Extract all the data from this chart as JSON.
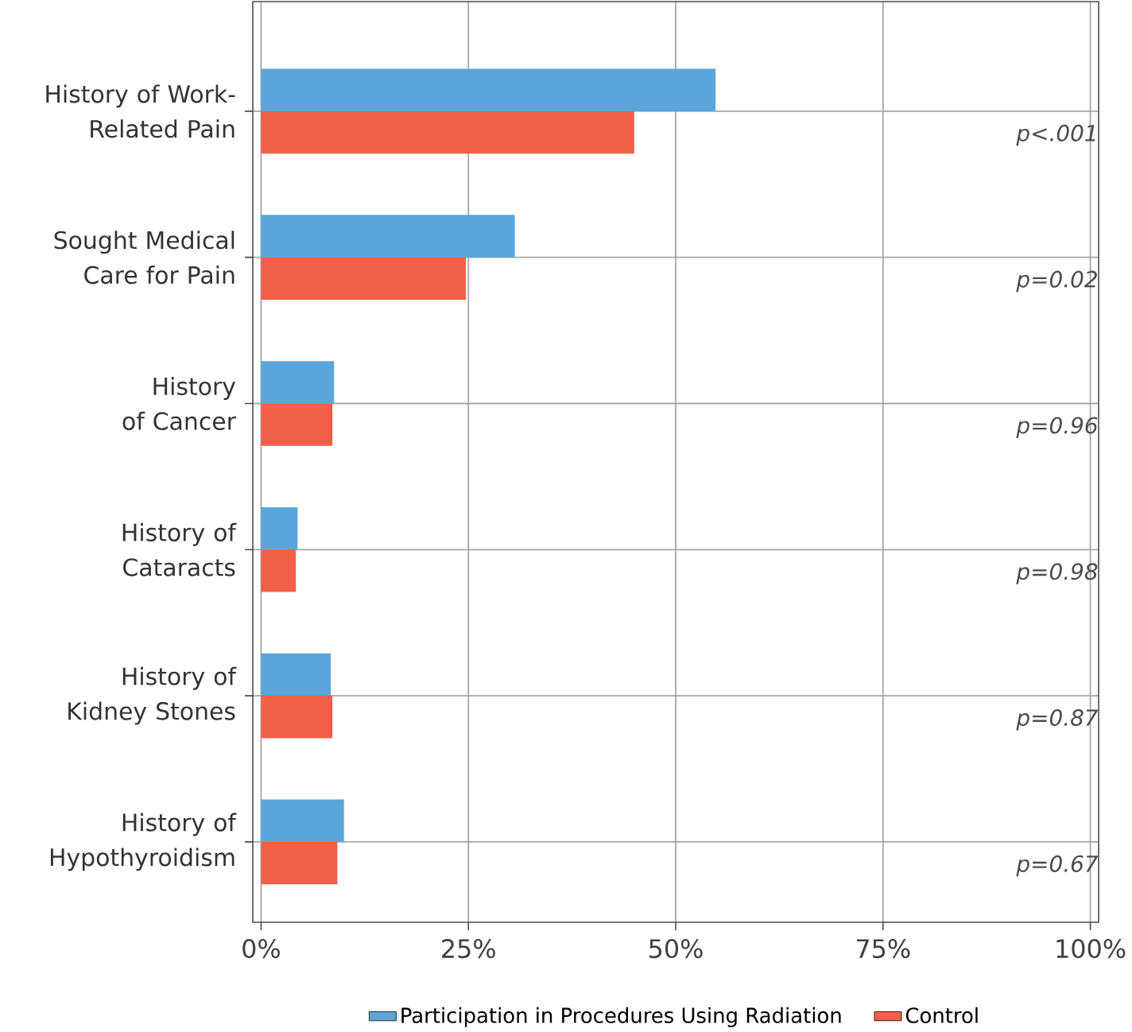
{
  "chart_data": {
    "type": "bar",
    "orientation": "horizontal",
    "categories": [
      "History of Work-Related Pain",
      "Sought Medical Care for Pain",
      "History of Cancer",
      "History of Cataracts",
      "History of Kidney Stones",
      "History of Hypothyroidism"
    ],
    "series": [
      {
        "name": "Participation in Procedures Using Radiation",
        "color": "#5ba5da",
        "values": [
          54.8,
          30.6,
          8.8,
          4.4,
          8.4,
          10.0
        ]
      },
      {
        "name": "Control",
        "color": "#f06049",
        "values": [
          45.0,
          24.7,
          8.6,
          4.2,
          8.6,
          9.2
        ]
      }
    ],
    "xlim": [
      -1,
      101
    ],
    "xticks": [
      {
        "value": 0,
        "label": "0%"
      },
      {
        "value": 25,
        "label": "25%"
      },
      {
        "value": 50,
        "label": "50%"
      },
      {
        "value": 75,
        "label": "75%"
      },
      {
        "value": 100,
        "label": "100%"
      }
    ],
    "annotations": [
      "p<.001",
      "p=0.02",
      "p=0.96",
      "p=0.98",
      "p=0.87",
      "p=0.67"
    ],
    "grid": true,
    "legend": "bottom"
  }
}
